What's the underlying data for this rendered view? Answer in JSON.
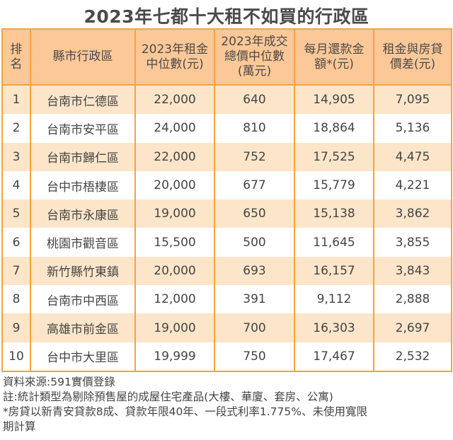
{
  "title": "2023年七都十大租不如買的行政區",
  "table": {
    "headers": [
      "排名",
      "縣市行政區",
      "2023年租金中位數(元)",
      "2023年成交總價中位數(萬元)",
      "每月還款金額*(元)",
      "租金與房貸價差(元)"
    ],
    "rows": [
      [
        "1",
        "台南市仁德區",
        "22,000",
        "640",
        "14,905",
        "7,095"
      ],
      [
        "2",
        "台南市安平區",
        "24,000",
        "810",
        "18,864",
        "5,136"
      ],
      [
        "3",
        "台南市歸仁區",
        "22,000",
        "752",
        "17,525",
        "4,475"
      ],
      [
        "4",
        "台中市梧棲區",
        "20,000",
        "677",
        "15,779",
        "4,221"
      ],
      [
        "5",
        "台南市永康區",
        "19,000",
        "650",
        "15,138",
        "3,862"
      ],
      [
        "6",
        "桃園市觀音區",
        "15,500",
        "500",
        "11,645",
        "3,855"
      ],
      [
        "7",
        "新竹縣竹東鎮",
        "20,000",
        "693",
        "16,157",
        "3,843"
      ],
      [
        "8",
        "台南市中西區",
        "12,000",
        "391",
        "9,112",
        "2,888"
      ],
      [
        "9",
        "高雄市前金區",
        "19,000",
        "700",
        "16,303",
        "2,697"
      ],
      [
        "10",
        "台中市大里區",
        "19,999",
        "750",
        "17,467",
        "2,532"
      ]
    ]
  },
  "notes": [
    "資料來源:591實價登錄",
    "註:統計類型為剔除預售屋的成屋住宅產品(大樓、華廈、套房、公寓)",
    "*房貸以新青安貸款8成、貸款年限40年、一段式利率1.775%、未使用寬限期計算"
  ],
  "colors": {
    "header_bg": "#fdc898",
    "odd_row_bg": "#fde5c9",
    "border": "#f7a33a"
  }
}
